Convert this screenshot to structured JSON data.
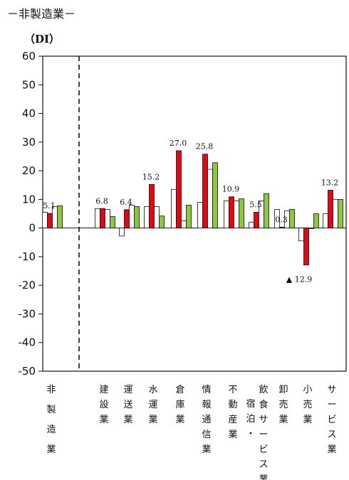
{
  "chart_data": {
    "type": "bar",
    "title": "－非製造業－",
    "ylabel": "（DI）",
    "ylim": [
      -50,
      60
    ],
    "yticks": [
      60,
      50,
      40,
      30,
      20,
      10,
      0,
      -10,
      -20,
      -30,
      -40,
      -50
    ],
    "grid": false,
    "categories": [
      {
        "label": "非製造業",
        "lines": [
          "非製造業"
        ]
      },
      {
        "label": "建設業",
        "lines": [
          "建設業"
        ]
      },
      {
        "label": "運送業",
        "lines": [
          "運送業"
        ]
      },
      {
        "label": "水運業",
        "lines": [
          "水運業"
        ]
      },
      {
        "label": "倉庫業",
        "lines": [
          "倉庫業"
        ]
      },
      {
        "label": "情報通信業",
        "lines": [
          "情報通信業"
        ]
      },
      {
        "label": "不動産業",
        "lines": [
          "不動産業"
        ]
      },
      {
        "label": "宿泊・飲食サービス業",
        "lines": [
          "宿泊・",
          "飲食サービス業"
        ]
      },
      {
        "label": "卸売業",
        "lines": [
          "卸売業"
        ]
      },
      {
        "label": "小売業",
        "lines": [
          "小売業"
        ]
      },
      {
        "label": "サービス業",
        "lines": [
          "サービス業"
        ]
      }
    ],
    "series_colors": [
      "#ffffff",
      "#e30613",
      "#ffffff",
      "#8dc63f"
    ],
    "series": [
      {
        "values": [
          5.5,
          6.8,
          -2.8,
          7.5,
          13.5,
          9.0,
          9.5,
          2.0,
          6.5,
          -4.5,
          5.0
        ]
      },
      {
        "values": [
          5.1,
          6.8,
          6.4,
          15.2,
          27.0,
          25.8,
          10.9,
          5.5,
          0.3,
          -12.9,
          13.2
        ]
      },
      {
        "values": [
          7.5,
          6.5,
          8.0,
          7.5,
          2.5,
          20.5,
          9.5,
          9.5,
          6.0,
          0.0,
          10.0
        ]
      },
      {
        "values": [
          7.8,
          4.0,
          7.5,
          4.2,
          8.0,
          22.8,
          10.2,
          12.0,
          6.5,
          5.0,
          10.0
        ]
      }
    ],
    "data_labels": [
      "5.1",
      "6.8",
      "6.4",
      "15.2",
      "27.0",
      "25.8",
      "10.9",
      "5.5",
      "0.3",
      "▲ 12.9",
      "13.2"
    ]
  }
}
